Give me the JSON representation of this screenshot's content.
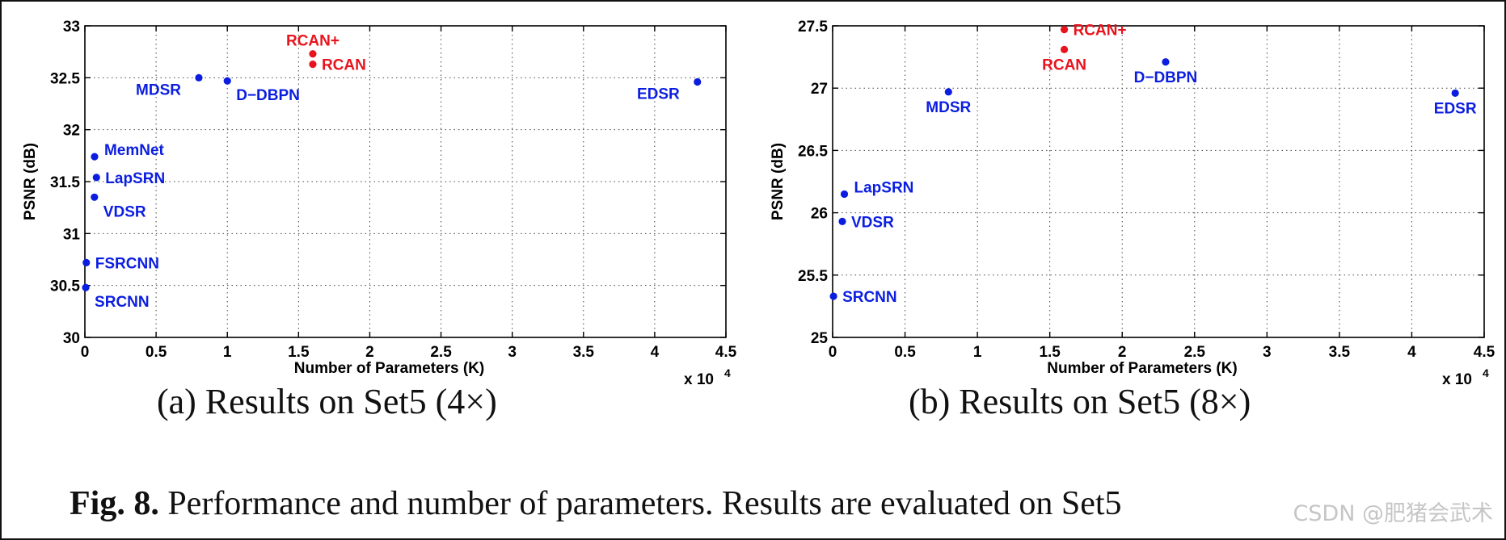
{
  "colors": {
    "ours": "#e8141d",
    "others": "#0b1ee0"
  },
  "chart_data": [
    {
      "type": "scatter",
      "subcaption": "(a) Results on Set5 (4×)",
      "xlabel": "Number of Parameters (K)",
      "ylabel": "PSNR (dB)",
      "xlim": [
        0,
        4.5
      ],
      "ylim": [
        30,
        33
      ],
      "x_scale_text": "x 10",
      "x_scale_exp": "4",
      "xticks": [
        0,
        0.5,
        1,
        1.5,
        2,
        2.5,
        3,
        3.5,
        4,
        4.5
      ],
      "xtick_labels": [
        "0",
        "0.5",
        "1",
        "1.5",
        "2",
        "2.5",
        "3",
        "3.5",
        "4",
        "4.5"
      ],
      "yticks": [
        30,
        30.5,
        31,
        31.5,
        32,
        32.5,
        33
      ],
      "ytick_labels": [
        "30",
        "30.5",
        "31",
        "31.5",
        "32",
        "32.5",
        "33"
      ],
      "grid": true,
      "points": [
        {
          "name": "SRCNN",
          "x": 0.006,
          "y": 30.48,
          "group": "others",
          "label_pos": "below-right"
        },
        {
          "name": "FSRCNN",
          "x": 0.01,
          "y": 30.72,
          "group": "others",
          "label_pos": "right"
        },
        {
          "name": "VDSR",
          "x": 0.067,
          "y": 31.35,
          "group": "others",
          "label_pos": "below-right"
        },
        {
          "name": "LapSRN",
          "x": 0.081,
          "y": 31.54,
          "group": "others",
          "label_pos": "right"
        },
        {
          "name": "MemNet",
          "x": 0.068,
          "y": 31.74,
          "group": "others",
          "label_pos": "above-right"
        },
        {
          "name": "MDSR",
          "x": 0.8,
          "y": 32.5,
          "group": "others",
          "label_pos": "below-left"
        },
        {
          "name": "D−DBPN",
          "x": 1.0,
          "y": 32.47,
          "group": "others",
          "label_pos": "below-right"
        },
        {
          "name": "EDSR",
          "x": 4.3,
          "y": 32.46,
          "group": "others",
          "label_pos": "below-left"
        },
        {
          "name": "RCAN",
          "x": 1.6,
          "y": 32.63,
          "group": "ours",
          "label_pos": "right"
        },
        {
          "name": "RCAN+",
          "x": 1.6,
          "y": 32.73,
          "group": "ours",
          "label_pos": "above"
        }
      ]
    },
    {
      "type": "scatter",
      "subcaption": "(b) Results on Set5 (8×)",
      "xlabel": "Number of Parameters (K)",
      "ylabel": "PSNR (dB)",
      "xlim": [
        0,
        4.5
      ],
      "ylim": [
        25,
        27.5
      ],
      "x_scale_text": "x 10",
      "x_scale_exp": "4",
      "xticks": [
        0,
        0.5,
        1,
        1.5,
        2,
        2.5,
        3,
        3.5,
        4,
        4.5
      ],
      "xtick_labels": [
        "0",
        "0.5",
        "1",
        "1.5",
        "2",
        "2.5",
        "3",
        "3.5",
        "4",
        "4.5"
      ],
      "yticks": [
        25,
        25.5,
        26,
        26.5,
        27,
        27.5
      ],
      "ytick_labels": [
        "25",
        "25.5",
        "26",
        "26.5",
        "27",
        "27.5"
      ],
      "grid": true,
      "points": [
        {
          "name": "SRCNN",
          "x": 0.006,
          "y": 25.33,
          "group": "others",
          "label_pos": "right"
        },
        {
          "name": "VDSR",
          "x": 0.067,
          "y": 25.93,
          "group": "others",
          "label_pos": "right"
        },
        {
          "name": "LapSRN",
          "x": 0.081,
          "y": 26.15,
          "group": "others",
          "label_pos": "above-right"
        },
        {
          "name": "MDSR",
          "x": 0.8,
          "y": 26.97,
          "group": "others",
          "label_pos": "below"
        },
        {
          "name": "D−DBPN",
          "x": 2.3,
          "y": 27.21,
          "group": "others",
          "label_pos": "below"
        },
        {
          "name": "EDSR",
          "x": 4.3,
          "y": 26.96,
          "group": "others",
          "label_pos": "below"
        },
        {
          "name": "RCAN",
          "x": 1.6,
          "y": 27.31,
          "group": "ours",
          "label_pos": "below"
        },
        {
          "name": "RCAN+",
          "x": 1.6,
          "y": 27.47,
          "group": "ours",
          "label_pos": "right"
        }
      ]
    }
  ],
  "caption": {
    "label": "Fig. 8.",
    "text": " Performance and number of parameters. Results are evaluated on Set5"
  },
  "watermark": "CSDN @肥猪会武术"
}
